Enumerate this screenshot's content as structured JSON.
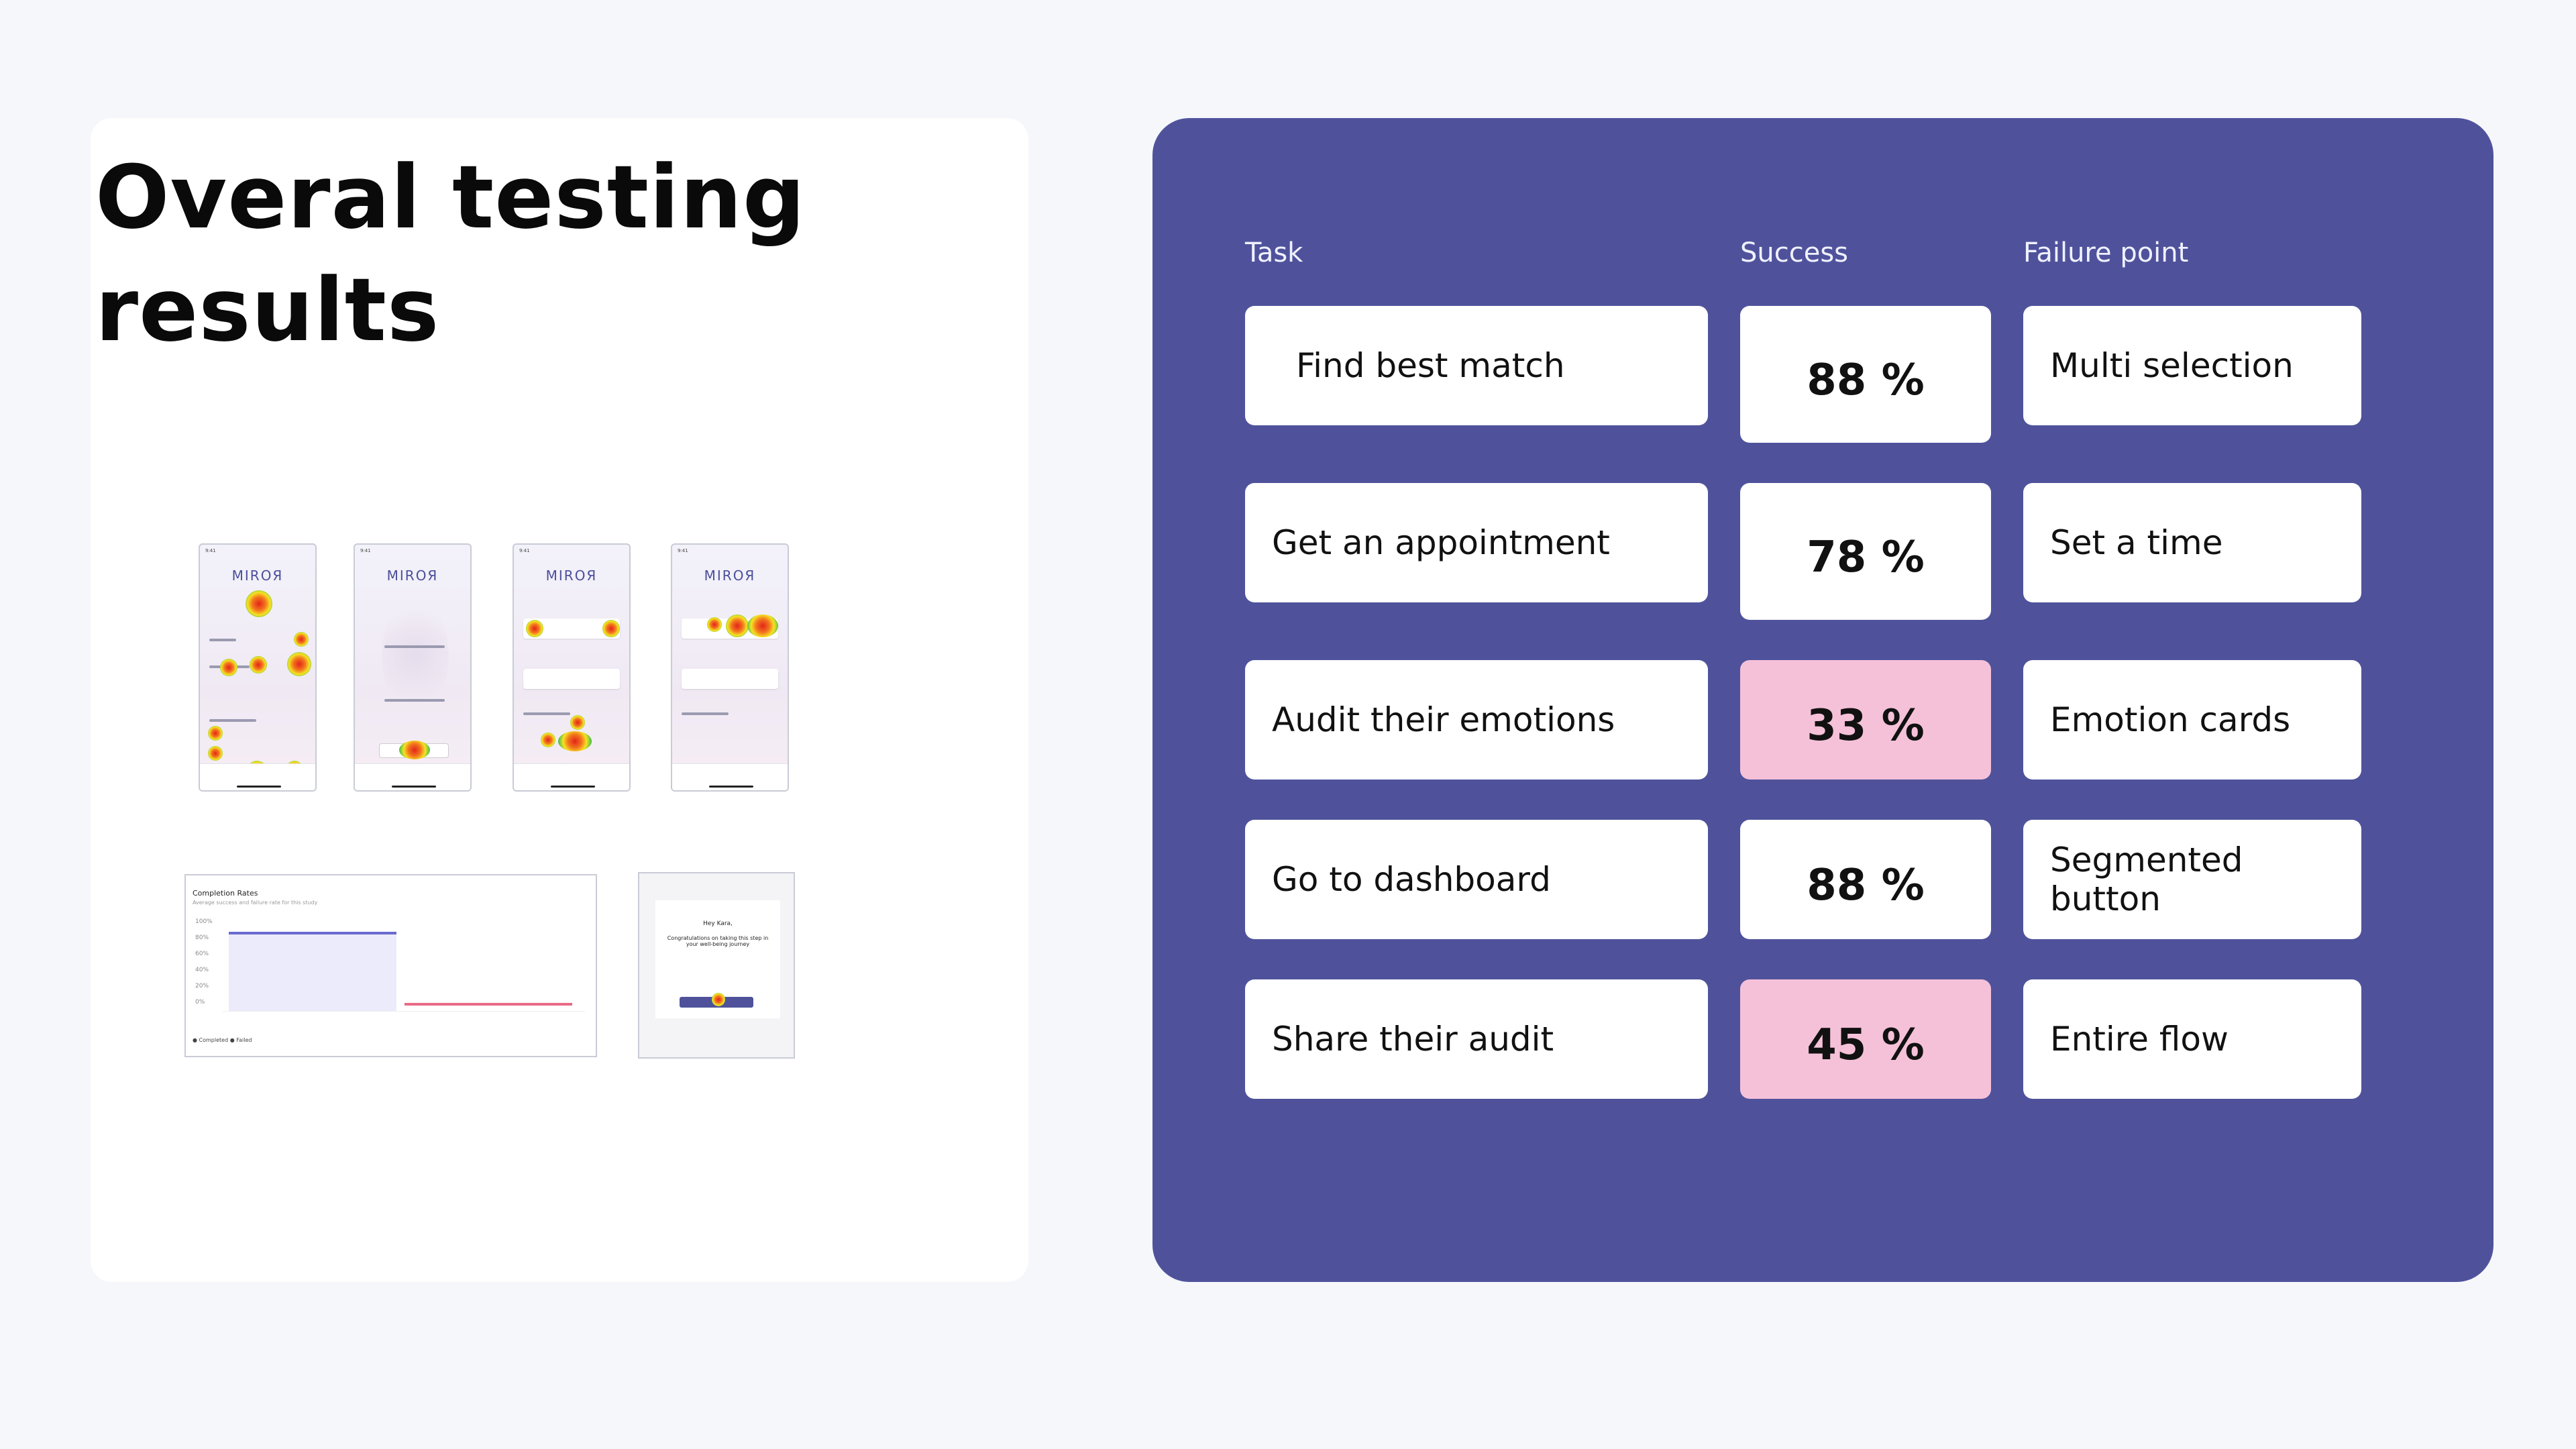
{
  "title": "Overal testing results",
  "table": {
    "headers": {
      "task": "Task",
      "success": "Success",
      "failure": "Failure point"
    },
    "rows": [
      {
        "task": "Find best match",
        "success": "88 %",
        "failure": "Multi selection",
        "low": false
      },
      {
        "task": "Get an appointment",
        "success": "78 %",
        "failure": "Set a time",
        "low": false
      },
      {
        "task": "Audit their emotions",
        "success": "33 %",
        "failure": "Emotion cards",
        "low": true
      },
      {
        "task": "Go to dashboard",
        "success": "88 %",
        "failure": "Segmented button",
        "low": false
      },
      {
        "task": "Share their audit",
        "success": "45 %",
        "failure": "Entire flow",
        "low": true
      }
    ]
  },
  "thumbnails": {
    "app_logo": "MIROЯ",
    "chart_title": "Completion Rates",
    "chart_subtitle": "Average success and failure rate for this study",
    "chart_ticks": [
      "100%",
      "80%",
      "60%",
      "40%",
      "20%",
      "0%"
    ],
    "legend": "● Completed   ● Failed",
    "modal_greeting": "Hey Kara,",
    "modal_text": "Congratulations on taking this step in your well-being journey"
  },
  "colors": {
    "panel": "#4f529b",
    "low_success": "#f5c1d8",
    "background": "#f5f7fb"
  }
}
